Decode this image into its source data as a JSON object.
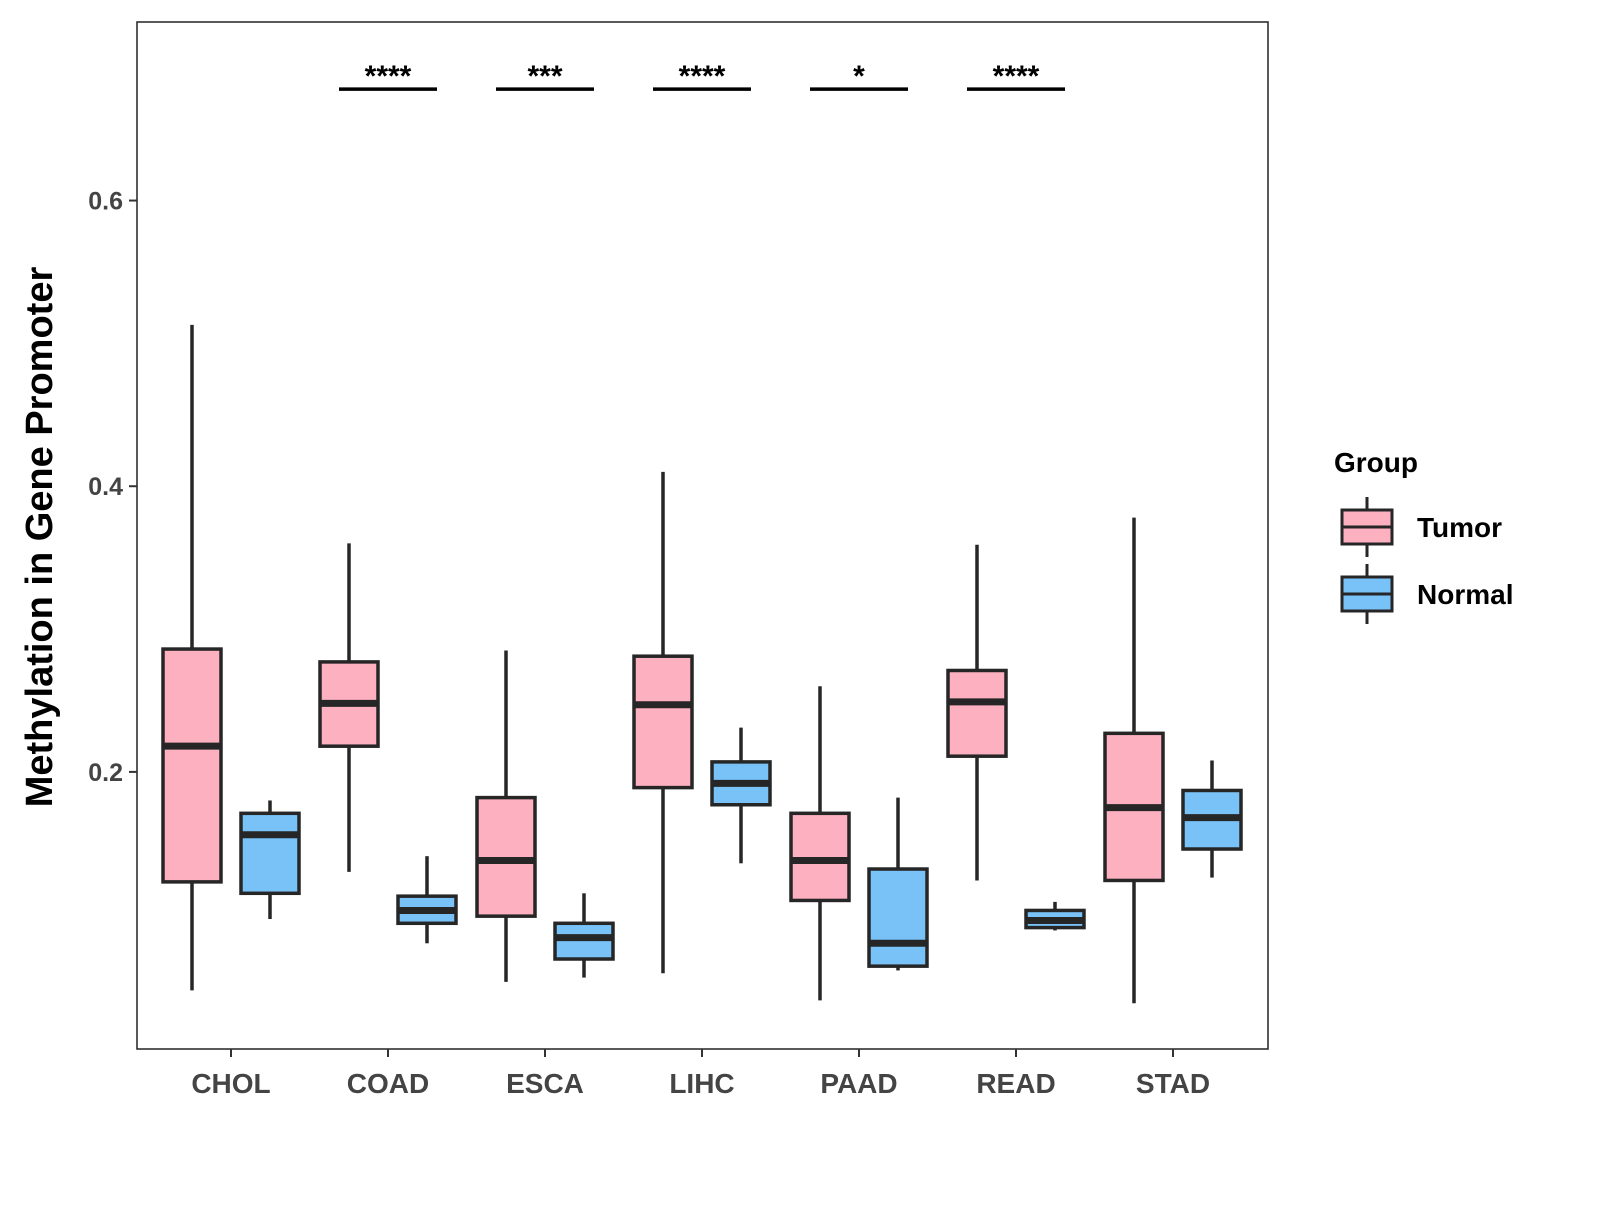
{
  "chart_data": {
    "type": "box",
    "title": "",
    "xlabel": "",
    "ylabel": "Methylation in Gene Promoter",
    "ylim": [
      0.006,
      0.725
    ],
    "yticks": [
      0.2,
      0.4,
      0.6
    ],
    "ytick_labels": [
      "0.2",
      "0.4",
      "0.6"
    ],
    "categories": [
      "CHOL",
      "COAD",
      "ESCA",
      "LIHC",
      "PAAD",
      "READ",
      "STAD"
    ],
    "legend": {
      "title": "Group",
      "position": "right",
      "entries": [
        "Tumor",
        "Normal"
      ]
    },
    "colors": {
      "Tumor": "#FCB0C0",
      "Normal": "#78C2F8",
      "outline": "#262626"
    },
    "series": [
      {
        "name": "Tumor",
        "boxes": [
          {
            "min": 0.047,
            "q1": 0.123,
            "median": 0.218,
            "q3": 0.286,
            "max": 0.513
          },
          {
            "min": 0.13,
            "q1": 0.218,
            "median": 0.248,
            "q3": 0.277,
            "max": 0.36
          },
          {
            "min": 0.053,
            "q1": 0.099,
            "median": 0.138,
            "q3": 0.182,
            "max": 0.285
          },
          {
            "min": 0.059,
            "q1": 0.189,
            "median": 0.247,
            "q3": 0.281,
            "max": 0.41
          },
          {
            "min": 0.04,
            "q1": 0.11,
            "median": 0.138,
            "q3": 0.171,
            "max": 0.26
          },
          {
            "min": 0.124,
            "q1": 0.211,
            "median": 0.249,
            "q3": 0.271,
            "max": 0.359
          },
          {
            "min": 0.038,
            "q1": 0.124,
            "median": 0.175,
            "q3": 0.227,
            "max": 0.378
          }
        ]
      },
      {
        "name": "Normal",
        "boxes": [
          {
            "min": 0.097,
            "q1": 0.115,
            "median": 0.156,
            "q3": 0.171,
            "max": 0.18
          },
          {
            "min": 0.08,
            "q1": 0.094,
            "median": 0.103,
            "q3": 0.113,
            "max": 0.141
          },
          {
            "min": 0.056,
            "q1": 0.069,
            "median": 0.084,
            "q3": 0.094,
            "max": 0.115
          },
          {
            "min": 0.136,
            "q1": 0.177,
            "median": 0.192,
            "q3": 0.207,
            "max": 0.231
          },
          {
            "min": 0.061,
            "q1": 0.064,
            "median": 0.08,
            "q3": 0.132,
            "max": 0.182
          },
          {
            "min": 0.089,
            "q1": 0.091,
            "median": 0.096,
            "q3": 0.103,
            "max": 0.109
          },
          {
            "min": 0.126,
            "q1": 0.146,
            "median": 0.168,
            "q3": 0.187,
            "max": 0.208
          }
        ]
      }
    ],
    "significance": {
      "y": 0.678,
      "labels": [
        "****",
        "***",
        "****",
        "*",
        "****"
      ],
      "categories": [
        "COAD",
        "ESCA",
        "LIHC",
        "PAAD",
        "READ"
      ]
    }
  }
}
